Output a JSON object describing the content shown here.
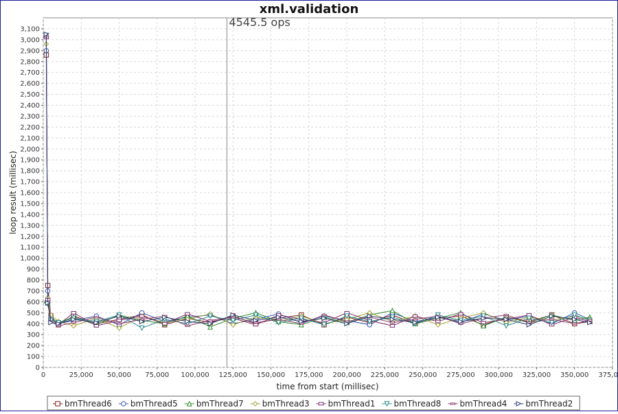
{
  "chart_data": {
    "type": "line",
    "title": "xml.validation",
    "marker_label": "4545.5 ops",
    "marker_x": 121000,
    "xlabel": "time from start (millisec)",
    "ylabel": "loop result (millisec)",
    "xlim": [
      0,
      375000
    ],
    "ylim": [
      0,
      3200
    ],
    "xticks": [
      0,
      25000,
      50000,
      75000,
      100000,
      125000,
      150000,
      175000,
      200000,
      225000,
      250000,
      275000,
      300000,
      325000,
      350000,
      375000
    ],
    "xtick_labels": [
      "0",
      "25,000",
      "50,000",
      "75,000",
      "100,000",
      "125,000",
      "150,000",
      "175,000",
      "200,000",
      "225,000",
      "250,000",
      "275,000",
      "300,000",
      "325,000",
      "350,000",
      "375,000"
    ],
    "yticks": [
      0,
      100,
      200,
      300,
      400,
      500,
      600,
      700,
      800,
      900,
      1000,
      1100,
      1200,
      1300,
      1400,
      1500,
      1600,
      1700,
      1800,
      1900,
      2000,
      2100,
      2200,
      2300,
      2400,
      2500,
      2600,
      2700,
      2800,
      2900,
      3000,
      3100
    ],
    "ytick_labels": [
      "0",
      "100",
      "200",
      "300",
      "400",
      "500",
      "600",
      "700",
      "800",
      "900",
      "1,000",
      "1,100",
      "1,200",
      "1,300",
      "1,400",
      "1,500",
      "1,600",
      "1,700",
      "1,800",
      "1,900",
      "2,000",
      "2,100",
      "2,200",
      "2,300",
      "2,400",
      "2,500",
      "2,600",
      "2,700",
      "2,800",
      "2,900",
      "3,000",
      "3,100"
    ],
    "grid": true,
    "legend_position": "bottom",
    "series": [
      {
        "name": "bmThread6",
        "marker": "square",
        "color": "#7a1a1a",
        "x": [
          2000,
          3000,
          5000,
          10000,
          20000,
          35000,
          50000,
          65000,
          80000,
          95000,
          110000,
          125000,
          140000,
          155000,
          170000,
          185000,
          200000,
          215000,
          230000,
          245000,
          260000,
          275000,
          290000,
          305000,
          320000,
          335000,
          350000,
          360000
        ],
        "y": [
          2860,
          750,
          470,
          390,
          470,
          400,
          440,
          480,
          390,
          450,
          410,
          470,
          400,
          450,
          480,
          390,
          460,
          410,
          480,
          400,
          450,
          470,
          390,
          460,
          420,
          480,
          400,
          420
        ]
      },
      {
        "name": "bmThread5",
        "marker": "circle",
        "color": "#3355aa",
        "x": [
          2000,
          3000,
          5000,
          10000,
          20000,
          35000,
          50000,
          65000,
          80000,
          95000,
          110000,
          125000,
          140000,
          155000,
          170000,
          185000,
          200000,
          215000,
          230000,
          245000,
          260000,
          275000,
          290000,
          305000,
          320000,
          335000,
          350000,
          360000
        ],
        "y": [
          2900,
          700,
          460,
          400,
          430,
          470,
          390,
          500,
          420,
          460,
          480,
          400,
          440,
          490,
          410,
          470,
          430,
          390,
          500,
          420,
          460,
          410,
          490,
          430,
          470,
          400,
          500,
          440
        ]
      },
      {
        "name": "bmThread7",
        "marker": "triangle",
        "color": "#2a8a2a",
        "x": [
          2000,
          3000,
          5000,
          10000,
          20000,
          35000,
          50000,
          65000,
          80000,
          95000,
          110000,
          125000,
          140000,
          155000,
          170000,
          185000,
          200000,
          215000,
          230000,
          245000,
          260000,
          275000,
          290000,
          305000,
          320000,
          335000,
          350000,
          360000
        ],
        "y": [
          610,
          590,
          450,
          410,
          460,
          390,
          480,
          430,
          400,
          470,
          370,
          450,
          500,
          420,
          390,
          460,
          410,
          480,
          520,
          400,
          450,
          500,
          380,
          460,
          410,
          480,
          430,
          460
        ]
      },
      {
        "name": "bmThread3",
        "marker": "diamond",
        "color": "#a0a030",
        "x": [
          2000,
          3000,
          5000,
          10000,
          20000,
          35000,
          50000,
          65000,
          80000,
          95000,
          110000,
          125000,
          140000,
          155000,
          170000,
          185000,
          200000,
          215000,
          230000,
          245000,
          260000,
          275000,
          290000,
          305000,
          320000,
          335000,
          350000,
          360000
        ],
        "y": [
          2960,
          640,
          480,
          420,
          380,
          450,
          360,
          470,
          410,
          440,
          490,
          390,
          460,
          420,
          470,
          400,
          440,
          500,
          420,
          470,
          390,
          450,
          500,
          410,
          460,
          430,
          470,
          440
        ]
      },
      {
        "name": "bmThread1",
        "marker": "rect",
        "color": "#7a2a6a",
        "x": [
          2000,
          3000,
          5000,
          10000,
          20000,
          35000,
          50000,
          65000,
          80000,
          95000,
          110000,
          125000,
          140000,
          155000,
          170000,
          185000,
          200000,
          215000,
          230000,
          245000,
          260000,
          275000,
          290000,
          305000,
          320000,
          335000,
          350000,
          360000
        ],
        "y": [
          3020,
          620,
          440,
          390,
          500,
          380,
          430,
          470,
          400,
          490,
          420,
          450,
          390,
          480,
          440,
          410,
          500,
          430,
          380,
          470,
          420,
          490,
          410,
          440,
          480,
          390,
          460,
          420
        ]
      },
      {
        "name": "bmThread8",
        "marker": "triangle-down",
        "color": "#2a8a8a",
        "x": [
          2000,
          3000,
          5000,
          10000,
          20000,
          35000,
          50000,
          65000,
          80000,
          95000,
          110000,
          125000,
          140000,
          155000,
          170000,
          185000,
          200000,
          215000,
          230000,
          245000,
          260000,
          275000,
          290000,
          305000,
          320000,
          335000,
          350000,
          360000
        ],
        "y": [
          3040,
          580,
          430,
          410,
          450,
          420,
          480,
          360,
          440,
          400,
          470,
          430,
          480,
          410,
          450,
          390,
          470,
          420,
          460,
          400,
          480,
          430,
          470,
          380,
          450,
          410,
          480,
          430
        ]
      },
      {
        "name": "bmThread4",
        "marker": "dash",
        "color": "#8a3a6a",
        "x": [
          2000,
          3000,
          5000,
          10000,
          20000,
          35000,
          50000,
          65000,
          80000,
          95000,
          110000,
          125000,
          140000,
          155000,
          170000,
          185000,
          200000,
          215000,
          230000,
          245000,
          260000,
          275000,
          290000,
          305000,
          320000,
          335000,
          350000,
          360000
        ],
        "y": [
          3030,
          600,
          420,
          380,
          410,
          460,
          400,
          440,
          470,
          380,
          430,
          460,
          410,
          440,
          400,
          480,
          420,
          460,
          410,
          440,
          470,
          400,
          450,
          480,
          410,
          440,
          400,
          430
        ]
      },
      {
        "name": "bmThread2",
        "marker": "triangle-right",
        "color": "#2a3a6a",
        "x": [
          2000,
          3000,
          5000,
          10000,
          20000,
          35000,
          50000,
          65000,
          80000,
          95000,
          110000,
          125000,
          140000,
          155000,
          170000,
          185000,
          200000,
          215000,
          230000,
          245000,
          260000,
          275000,
          290000,
          305000,
          320000,
          335000,
          350000,
          360000
        ],
        "y": [
          3050,
          590,
          410,
          400,
          440,
          410,
          470,
          420,
          460,
          420,
          400,
          480,
          430,
          460,
          420,
          450,
          400,
          470,
          440,
          410,
          460,
          420,
          450,
          440,
          390,
          470,
          440,
          410
        ]
      }
    ]
  }
}
